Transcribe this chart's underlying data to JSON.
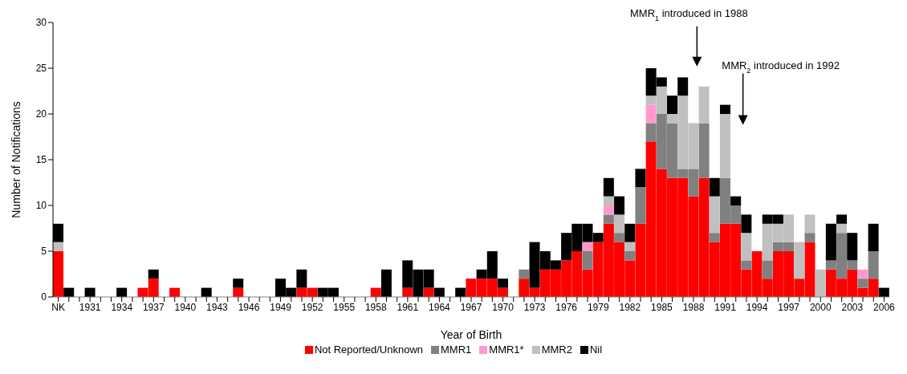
{
  "chart_data": {
    "type": "bar",
    "stacked": true,
    "xlabel": "Year of Birth",
    "ylabel": "Number of Notifications",
    "categories": [
      "NK",
      null,
      null,
      "1931",
      null,
      null,
      "1934",
      null,
      null,
      "1937",
      null,
      null,
      "1940",
      null,
      null,
      "1943",
      null,
      null,
      "1946",
      null,
      null,
      "1949",
      null,
      null,
      "1952",
      null,
      null,
      "1955",
      null,
      null,
      "1958",
      null,
      null,
      "1961",
      null,
      null,
      "1964",
      null,
      null,
      "1967",
      null,
      null,
      "1970",
      null,
      null,
      "1973",
      null,
      null,
      "1976",
      null,
      null,
      "1979",
      null,
      null,
      "1982",
      null,
      null,
      "1985",
      null,
      null,
      "1988",
      null,
      null,
      "1991",
      null,
      null,
      "1994",
      null,
      null,
      "1997",
      null,
      null,
      "2000",
      null,
      null,
      "2003",
      null,
      null,
      "2006"
    ],
    "series": [
      {
        "name": "Not Reported/Unknown",
        "color": "#ff0000",
        "values": [
          5,
          0,
          0,
          0,
          0,
          0,
          0,
          0,
          1,
          2,
          0,
          1,
          0,
          0,
          0,
          0,
          0,
          1,
          0,
          0,
          0,
          0,
          0,
          1,
          1,
          0,
          0,
          0,
          0,
          0,
          1,
          0,
          0,
          1,
          0,
          1,
          0,
          0,
          0,
          2,
          2,
          2,
          1,
          0,
          2,
          1,
          3,
          3,
          4,
          5,
          3,
          6,
          8,
          6,
          4,
          8,
          17,
          14,
          13,
          13,
          11,
          13,
          6,
          8,
          8,
          3,
          5,
          2,
          5,
          5,
          2,
          6,
          0,
          3,
          2,
          3,
          1,
          2,
          0
        ]
      },
      {
        "name": "MMR1",
        "color": "#808080",
        "values": [
          0,
          0,
          0,
          0,
          0,
          0,
          0,
          0,
          0,
          0,
          0,
          0,
          0,
          0,
          0,
          0,
          0,
          0,
          0,
          0,
          0,
          0,
          0,
          0,
          0,
          0,
          0,
          0,
          0,
          0,
          0,
          0,
          0,
          0,
          0,
          0,
          0,
          0,
          0,
          0,
          0,
          0,
          0,
          0,
          1,
          0,
          0,
          0,
          0,
          0,
          2,
          0,
          1,
          1,
          1,
          4,
          2,
          6,
          6,
          1,
          3,
          6,
          1,
          5,
          2,
          1,
          0,
          2,
          1,
          1,
          0,
          1,
          0,
          1,
          5,
          1,
          1,
          3,
          0
        ]
      },
      {
        "name": "MMR1*",
        "color": "#ff99cc",
        "values": [
          0,
          0,
          0,
          0,
          0,
          0,
          0,
          0,
          0,
          0,
          0,
          0,
          0,
          0,
          0,
          0,
          0,
          0,
          0,
          0,
          0,
          0,
          0,
          0,
          0,
          0,
          0,
          0,
          0,
          0,
          0,
          0,
          0,
          0,
          0,
          0,
          0,
          0,
          0,
          0,
          0,
          0,
          0,
          0,
          0,
          0,
          0,
          0,
          0,
          0,
          1,
          0,
          1,
          0,
          0,
          0,
          2,
          0,
          0,
          0,
          0,
          0,
          0,
          0,
          0,
          0,
          0,
          0,
          0,
          0,
          0,
          0,
          0,
          0,
          0,
          0,
          1,
          0,
          0
        ]
      },
      {
        "name": "MMR2",
        "color": "#c0c0c0",
        "values": [
          1,
          0,
          0,
          0,
          0,
          0,
          0,
          0,
          0,
          0,
          0,
          0,
          0,
          0,
          0,
          0,
          0,
          0,
          0,
          0,
          0,
          0,
          0,
          0,
          0,
          0,
          0,
          0,
          0,
          0,
          0,
          0,
          0,
          0,
          0,
          0,
          0,
          0,
          0,
          0,
          0,
          0,
          0,
          0,
          0,
          0,
          0,
          0,
          0,
          0,
          0,
          0,
          1,
          2,
          1,
          0,
          1,
          3,
          1,
          8,
          5,
          4,
          4,
          7,
          0,
          3,
          0,
          4,
          2,
          3,
          4,
          2,
          3,
          0,
          1,
          0,
          0,
          0,
          0
        ]
      },
      {
        "name": "Nil",
        "color": "#000000",
        "values": [
          2,
          1,
          0,
          1,
          0,
          0,
          1,
          0,
          0,
          1,
          0,
          0,
          0,
          0,
          1,
          0,
          0,
          1,
          0,
          0,
          0,
          2,
          1,
          2,
          0,
          1,
          1,
          0,
          0,
          0,
          0,
          3,
          0,
          3,
          3,
          2,
          1,
          0,
          1,
          0,
          1,
          3,
          1,
          0,
          0,
          5,
          2,
          1,
          3,
          3,
          2,
          1,
          2,
          2,
          2,
          2,
          3,
          1,
          2,
          2,
          0,
          0,
          2,
          1,
          1,
          2,
          0,
          1,
          1,
          0,
          0,
          0,
          0,
          4,
          1,
          3,
          0,
          3,
          1
        ]
      }
    ],
    "ylim": [
      0,
      30
    ],
    "yticks": [
      0,
      5,
      10,
      15,
      20,
      25,
      30
    ],
    "legend": "bottom",
    "annotations": [
      "MMR$_{1}$ introduced in 1988",
      "MMR$_{2}$ introduced in 1992"
    ]
  }
}
